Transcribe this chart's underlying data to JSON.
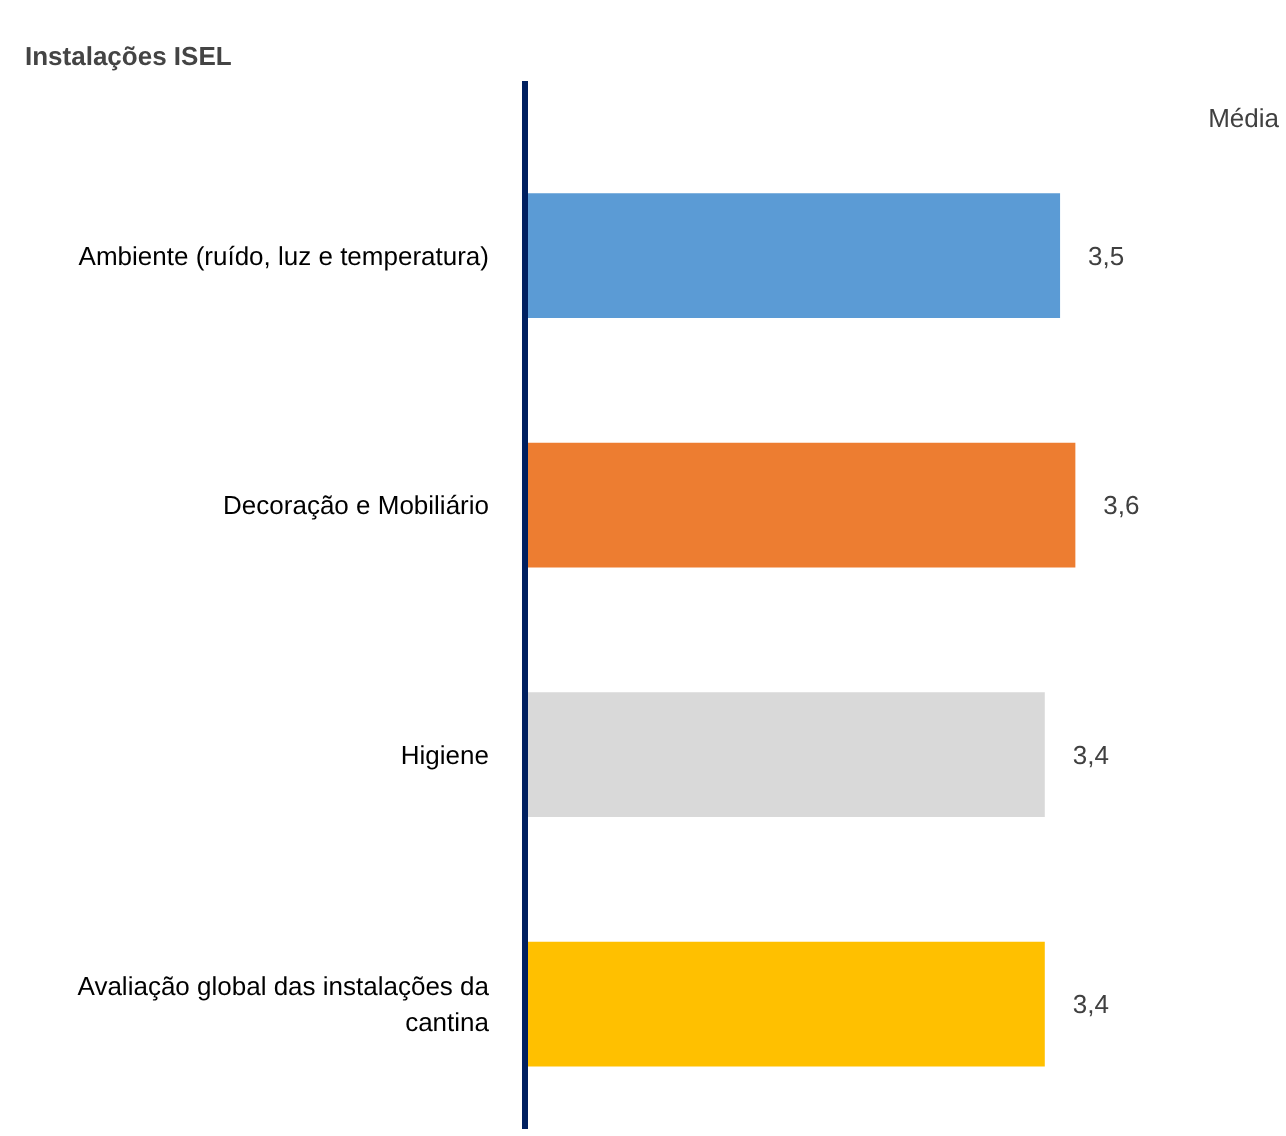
{
  "chart_data": {
    "type": "bar",
    "orientation": "horizontal",
    "title": "Instalações ISEL",
    "categories": [
      "Ambiente (ruído, luz e temperatura)",
      "Decoração e Mobiliário",
      "Higiene",
      "Avaliação global das instalações da cantina"
    ],
    "values": [
      3.5,
      3.6,
      3.4,
      3.4
    ],
    "colors": [
      "#5b9bd5",
      "#ed7d31",
      "#d9d9d9",
      "#ffc000"
    ],
    "value_labels": [
      "3,5",
      "3,6",
      "3,4",
      "3,4"
    ],
    "tick_labels": "y",
    "grid": false,
    "annotations": [
      "Média"
    ]
  }
}
